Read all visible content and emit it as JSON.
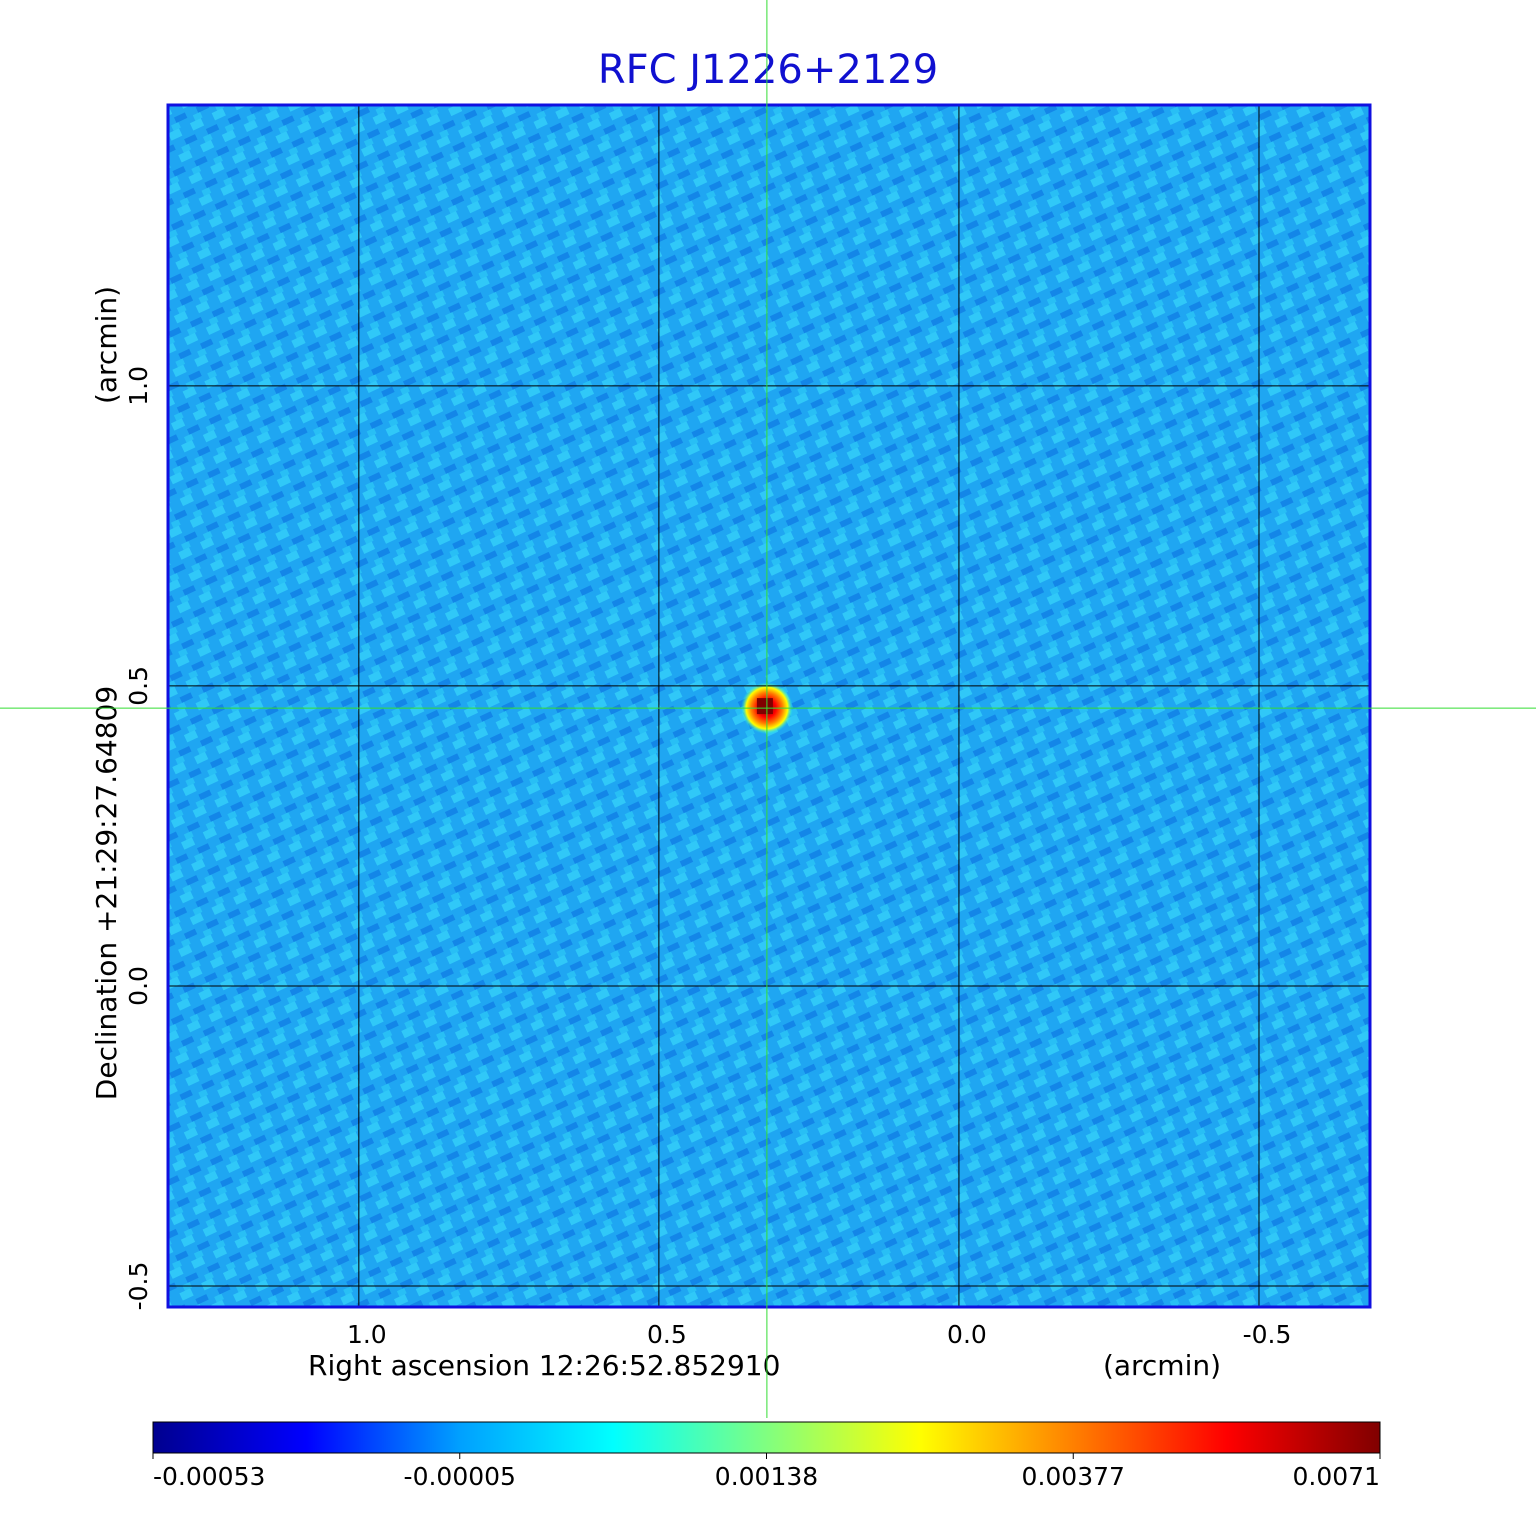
{
  "chart_data": {
    "type": "image",
    "title": "RFC J1226+2129",
    "x_label": "Right ascension  12:26:52.852910",
    "x_unit": "(arcmin)",
    "y_label": "Declination  +21:29:27.64809",
    "y_unit": "(arcmin)",
    "xlim": [
      1.318,
      -0.685
    ],
    "ylim": [
      -0.535,
      1.468
    ],
    "xticks": [
      {
        "value": 1.0,
        "label": "1.0"
      },
      0.5,
      {
        "value": 0.0,
        "label": "0.0"
      },
      -0.5
    ],
    "yticks": [
      -0.5,
      {
        "value": 0.0,
        "label": "0.0"
      },
      0.5,
      {
        "value": 1.0,
        "label": "1.0"
      }
    ],
    "grid": true,
    "crosshair": {
      "x": 0.32,
      "y": 0.463,
      "color": "#33dd33"
    },
    "source": {
      "x": 0.32,
      "y": 0.463,
      "peak": 0.0071
    },
    "colorbar": {
      "ticks": [
        -0.00053,
        -5e-05,
        0.00138,
        0.00377,
        0.0071
      ],
      "colormap": [
        "#00008f",
        "#0000ff",
        "#00a0ff",
        "#00ffff",
        "#80ff80",
        "#ffff00",
        "#ff8000",
        "#ff0000",
        "#800000"
      ]
    }
  }
}
